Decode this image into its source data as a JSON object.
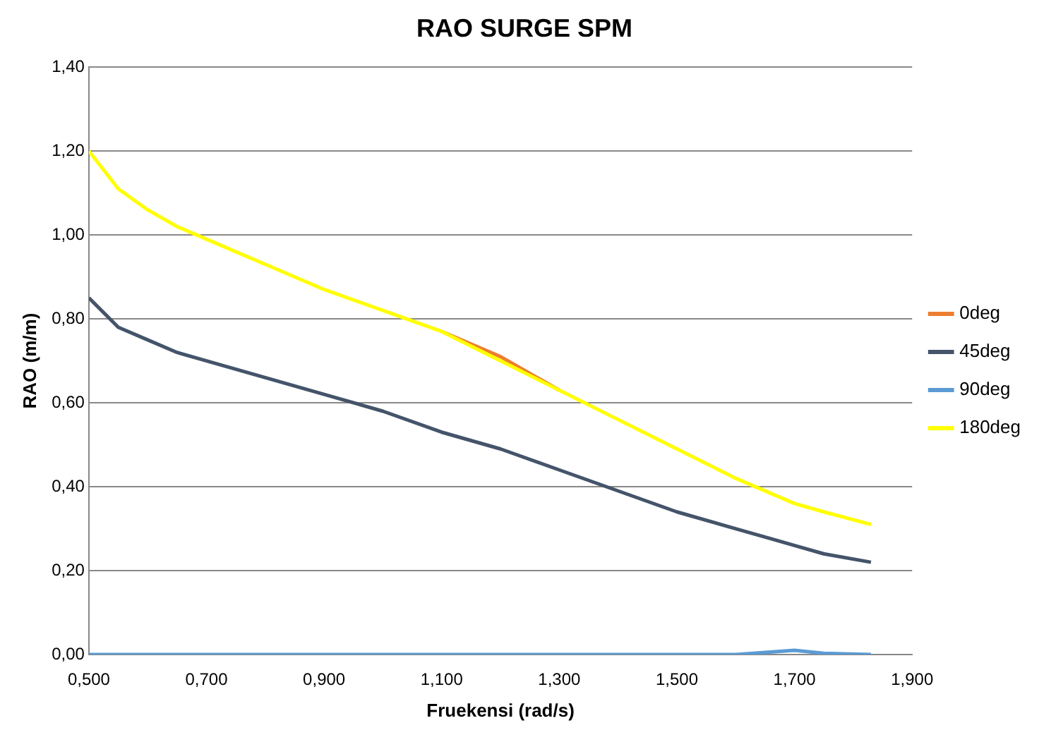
{
  "chart_data": {
    "type": "line",
    "title": "RAO SURGE SPM",
    "xlabel": "Fruekensi (rad/s)",
    "ylabel": "RAO (m/m)",
    "x": [
      0.5,
      0.55,
      0.6,
      0.65,
      0.7,
      0.8,
      0.9,
      1.0,
      1.1,
      1.2,
      1.3,
      1.4,
      1.5,
      1.6,
      1.7,
      1.75,
      1.83
    ],
    "series": [
      {
        "name": "0deg",
        "color": "#ed7d31",
        "values": [
          null,
          null,
          null,
          null,
          null,
          null,
          null,
          null,
          0.77,
          0.71,
          0.63,
          null,
          null,
          null,
          null,
          null,
          null
        ]
      },
      {
        "name": "45deg",
        "color": "#44546a",
        "values": [
          0.85,
          0.78,
          0.75,
          0.72,
          0.7,
          0.66,
          0.62,
          0.58,
          0.53,
          0.49,
          0.44,
          0.39,
          0.34,
          0.3,
          0.26,
          0.24,
          0.22
        ]
      },
      {
        "name": "90deg",
        "color": "#5b9bd5",
        "values": [
          0,
          0,
          0,
          0,
          0,
          0,
          0,
          0,
          0,
          0,
          0,
          0,
          0,
          0,
          0.01,
          0.003,
          0
        ]
      },
      {
        "name": "180deg",
        "color": "#ffff00",
        "values": [
          1.2,
          1.11,
          1.06,
          1.02,
          0.99,
          0.93,
          0.87,
          0.82,
          0.77,
          0.7,
          0.63,
          0.56,
          0.49,
          0.42,
          0.36,
          0.34,
          0.31
        ]
      }
    ],
    "xlim": [
      0.5,
      1.9
    ],
    "xticks": [
      {
        "value": 0.5,
        "label": "0,500"
      },
      {
        "value": 0.7,
        "label": "0,700"
      },
      {
        "value": 0.9,
        "label": "0,900"
      },
      {
        "value": 1.1,
        "label": "1,100"
      },
      {
        "value": 1.3,
        "label": "1,300"
      },
      {
        "value": 1.5,
        "label": "1,500"
      },
      {
        "value": 1.7,
        "label": "1,700"
      },
      {
        "value": 1.9,
        "label": "1,900"
      }
    ],
    "ylim": [
      0,
      1.4
    ],
    "yticks": [
      {
        "value": 0,
        "label": "0,00"
      },
      {
        "value": 0.2,
        "label": "0,20"
      },
      {
        "value": 0.4,
        "label": "0,40"
      },
      {
        "value": 0.6,
        "label": "0,60"
      },
      {
        "value": 0.8,
        "label": "0,80"
      },
      {
        "value": 1.0,
        "label": "1,00"
      },
      {
        "value": 1.2,
        "label": "1,20"
      },
      {
        "value": 1.4,
        "label": "1,40"
      }
    ],
    "grid": "y",
    "legend": "right",
    "marker": "none",
    "line_style": "solid"
  }
}
